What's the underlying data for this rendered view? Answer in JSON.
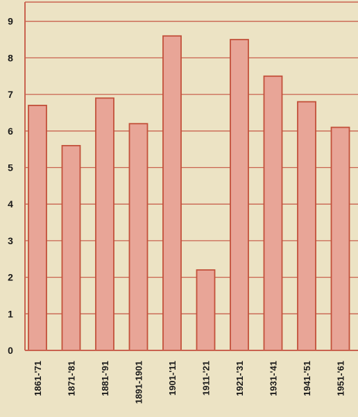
{
  "chart_data": {
    "type": "bar",
    "categories": [
      "1861-'71",
      "1871-'81",
      "1881-'91",
      "1891-1901",
      "1901-'11",
      "1911-'21",
      "1921-'31",
      "1931-'41",
      "1941-'51",
      "1951-'61"
    ],
    "values": [
      6.7,
      5.6,
      6.9,
      6.2,
      8.6,
      2.2,
      8.5,
      7.5,
      6.8,
      6.1
    ],
    "title": "",
    "xlabel": "",
    "ylabel": "",
    "ylim": [
      0,
      9
    ],
    "yticks": [
      "0",
      "1",
      "2",
      "3",
      "4",
      "5",
      "6",
      "7",
      "8",
      "9"
    ],
    "grid": "horizontal",
    "colors": {
      "background": "#ece3c4",
      "bar_fill": "#e8a597",
      "bar_stroke": "#c2503a",
      "grid": "#c9624e"
    }
  }
}
